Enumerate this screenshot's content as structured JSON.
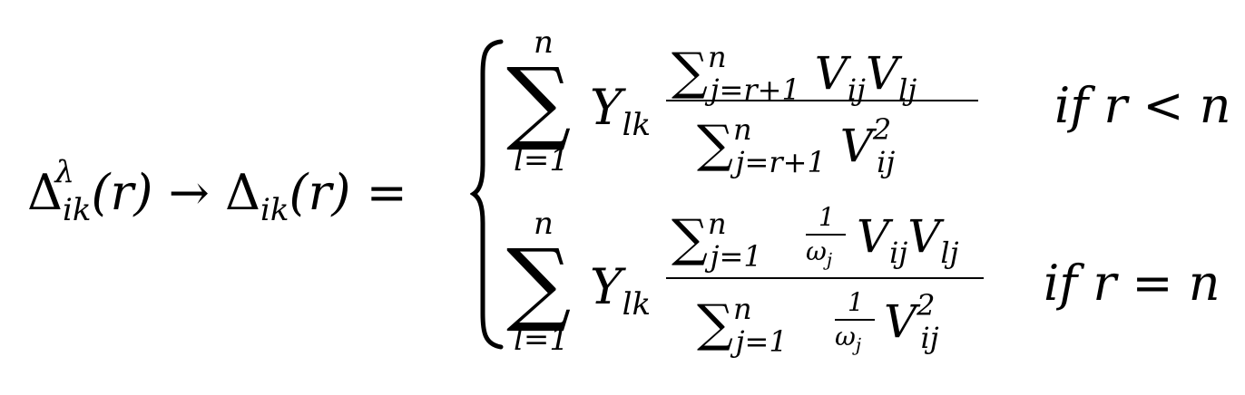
{
  "equation": {
    "lhs": {
      "delta": "Δ",
      "lambda_sup": "λ",
      "ik_sub": "ik",
      "arg": "(r)",
      "arrow": "→",
      "delta2": "Δ",
      "ik_sub2": "ik",
      "arg2": "(r)",
      "equals": "="
    },
    "case1": {
      "sum_symbol": "∑",
      "sum_upper": "n",
      "sum_lower": "l=1",
      "y": "Y",
      "y_sub": "lk",
      "num_sum": "∑",
      "num_lower": "j=r+1",
      "num_upper": "n",
      "num_term": "V",
      "num_sub1": "ij",
      "num_term2": "V",
      "num_sub2": "lj",
      "den_sum": "∑",
      "den_lower": "j=r+1",
      "den_upper": "n",
      "den_term": "V",
      "den_sub": "ij",
      "den_sup": "2",
      "condition": "if r < n"
    },
    "case2": {
      "sum_symbol": "∑",
      "sum_upper": "n",
      "sum_lower": "l=1",
      "y": "Y",
      "y_sub": "lk",
      "num_sum": "∑",
      "num_lower": "j=1",
      "num_upper": "n",
      "frac_num": "1",
      "frac_den": "ω",
      "frac_den_sub": "j",
      "num_term": "V",
      "num_sub1": "ij",
      "num_term2": "V",
      "num_sub2": "lj",
      "den_sum": "∑",
      "den_lower": "j=1",
      "den_upper": "n",
      "den_frac_num": "1",
      "den_frac_den": "ω",
      "den_frac_den_sub": "j",
      "den_term": "V",
      "den_sub": "ij",
      "den_sup": "2",
      "condition": "if r = n"
    }
  }
}
